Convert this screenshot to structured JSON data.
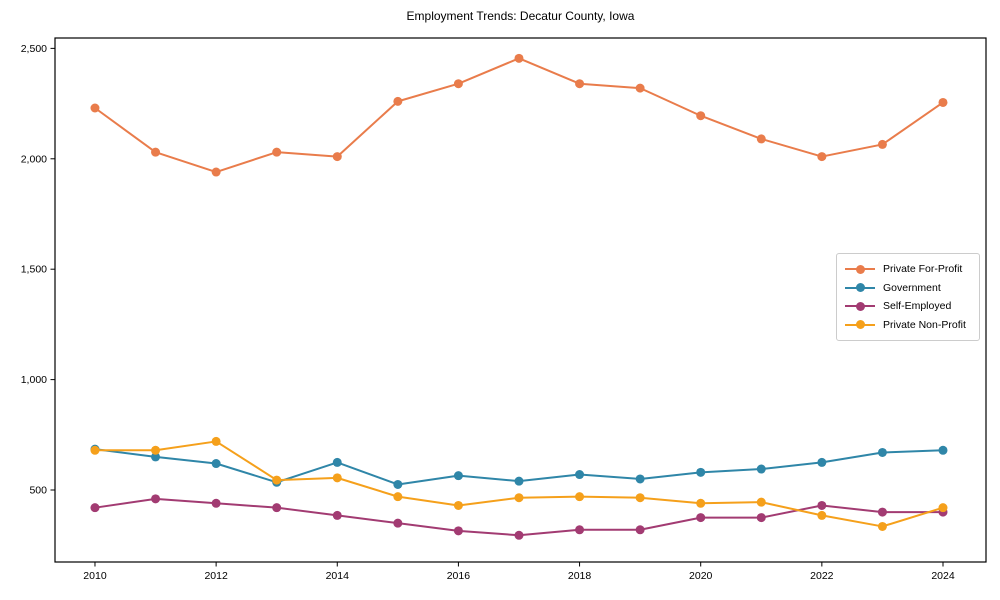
{
  "title": "Employment Trends: Decatur County, Iowa",
  "chart_data": {
    "type": "line",
    "title": "Employment Trends: Decatur County, Iowa",
    "xlabel": "",
    "ylabel": "",
    "grid": false,
    "legend_position": "center-right",
    "x": [
      2010,
      2011,
      2012,
      2013,
      2014,
      2015,
      2016,
      2017,
      2018,
      2019,
      2020,
      2021,
      2022,
      2023,
      2024
    ],
    "series": [
      {
        "name": "Private For-Profit",
        "color": "#E97C4B",
        "values": [
          2230,
          2030,
          1940,
          2030,
          2010,
          2260,
          2340,
          2455,
          2340,
          2320,
          2195,
          2090,
          2010,
          2065,
          2255
        ]
      },
      {
        "name": "Government",
        "color": "#2F86A8",
        "values": [
          685,
          650,
          620,
          535,
          625,
          525,
          565,
          540,
          570,
          550,
          580,
          595,
          625,
          670,
          680
        ]
      },
      {
        "name": "Self-Employed",
        "color": "#A23B72",
        "values": [
          420,
          460,
          440,
          420,
          385,
          350,
          315,
          295,
          320,
          320,
          375,
          375,
          430,
          400,
          400
        ]
      },
      {
        "name": "Private Non-Profit",
        "color": "#F5A01B",
        "values": [
          680,
          680,
          720,
          545,
          555,
          470,
          430,
          465,
          470,
          465,
          440,
          445,
          385,
          335,
          420
        ]
      }
    ],
    "x_ticks": {
      "values": [
        2010,
        2012,
        2014,
        2016,
        2018,
        2020,
        2022,
        2024
      ],
      "labels": [
        "2010",
        "2012",
        "2014",
        "2016",
        "2018",
        "2020",
        "2022",
        "2024"
      ]
    },
    "y_ticks": {
      "values": [
        500,
        1000,
        1500,
        2000,
        2500
      ],
      "labels": [
        "500",
        "1,000",
        "1,500",
        "2,000",
        "2,500"
      ]
    },
    "xlim": [
      2009.34,
      2024.71
    ],
    "ylim": [
      174,
      2547
    ]
  }
}
